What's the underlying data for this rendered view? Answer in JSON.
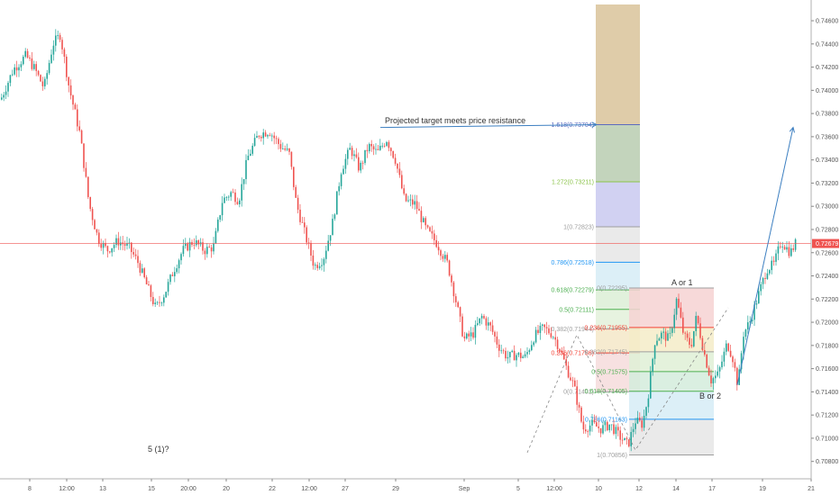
{
  "chart_data": {
    "type": "candlestick",
    "instrument_last_price": "0.72679",
    "colors": {
      "up": "#26a69a",
      "down": "#ef5350",
      "wick": "#555555",
      "projection": "#3d7fc1",
      "last_price_line": "#ef5350"
    },
    "y_axis": {
      "ticks": [
        "0.74600",
        "0.74400",
        "0.74200",
        "0.74000",
        "0.73800",
        "0.73600",
        "0.73400",
        "0.73200",
        "0.73000",
        "0.72800",
        "0.72600",
        "0.72400",
        "0.72200",
        "0.72000",
        "0.71800",
        "0.71600",
        "0.71400",
        "0.71200",
        "0.71000",
        "0.70800"
      ],
      "range": [
        0.7072,
        0.7474
      ]
    },
    "x_axis": {
      "ticks": [
        "8",
        "12:00",
        "13",
        "15",
        "20:00",
        "20",
        "22",
        "12:00",
        "27",
        "29",
        "Sep",
        "5",
        "12:00",
        "10",
        "12",
        "14",
        "17",
        "19",
        "21"
      ]
    },
    "price_path": [
      [
        0,
        0.7392
      ],
      [
        14,
        0.7418
      ],
      [
        28,
        0.743
      ],
      [
        38,
        0.7418
      ],
      [
        48,
        0.7402
      ],
      [
        58,
        0.744
      ],
      [
        66,
        0.7448
      ],
      [
        76,
        0.7402
      ],
      [
        88,
        0.7362
      ],
      [
        98,
        0.7302
      ],
      [
        108,
        0.7272
      ],
      [
        118,
        0.7262
      ],
      [
        130,
        0.727
      ],
      [
        142,
        0.7265
      ],
      [
        152,
        0.7252
      ],
      [
        162,
        0.7232
      ],
      [
        172,
        0.7212
      ],
      [
        182,
        0.7225
      ],
      [
        192,
        0.7245
      ],
      [
        202,
        0.7262
      ],
      [
        214,
        0.727
      ],
      [
        226,
        0.7262
      ],
      [
        236,
        0.7265
      ],
      [
        246,
        0.7305
      ],
      [
        256,
        0.7312
      ],
      [
        264,
        0.7305
      ],
      [
        274,
        0.7342
      ],
      [
        286,
        0.7362
      ],
      [
        298,
        0.7365
      ],
      [
        310,
        0.7352
      ],
      [
        320,
        0.7346
      ],
      [
        328,
        0.7302
      ],
      [
        338,
        0.7275
      ],
      [
        348,
        0.7248
      ],
      [
        358,
        0.7255
      ],
      [
        368,
        0.7285
      ],
      [
        378,
        0.7332
      ],
      [
        388,
        0.735
      ],
      [
        398,
        0.7332
      ],
      [
        408,
        0.7352
      ],
      [
        418,
        0.7346
      ],
      [
        428,
        0.7358
      ],
      [
        438,
        0.734
      ],
      [
        448,
        0.7305
      ],
      [
        460,
        0.7302
      ],
      [
        472,
        0.728
      ],
      [
        484,
        0.7268
      ],
      [
        496,
        0.725
      ],
      [
        506,
        0.7215
      ],
      [
        514,
        0.7185
      ],
      [
        524,
        0.719
      ],
      [
        534,
        0.7205
      ],
      [
        544,
        0.7195
      ],
      [
        552,
        0.718
      ],
      [
        562,
        0.717
      ],
      [
        572,
        0.7172
      ],
      [
        582,
        0.717
      ],
      [
        592,
        0.7188
      ],
      [
        602,
        0.7195
      ],
      [
        612,
        0.719
      ],
      [
        620,
        0.7178
      ],
      [
        628,
        0.716
      ],
      [
        636,
        0.7145
      ],
      [
        646,
        0.7108
      ],
      [
        656,
        0.7112
      ],
      [
        666,
        0.7108
      ],
      [
        676,
        0.7112
      ],
      [
        686,
        0.7102
      ],
      [
        696,
        0.7094
      ],
      [
        704,
        0.7115
      ],
      [
        712,
        0.7112
      ],
      [
        718,
        0.7135
      ],
      [
        726,
        0.7185
      ],
      [
        734,
        0.719
      ],
      [
        742,
        0.7185
      ],
      [
        750,
        0.722
      ],
      [
        758,
        0.7188
      ],
      [
        766,
        0.718
      ],
      [
        772,
        0.7205
      ],
      [
        780,
        0.7175
      ],
      [
        788,
        0.715
      ],
      [
        796,
        0.7155
      ],
      [
        806,
        0.7182
      ],
      [
        812,
        0.717
      ],
      [
        818,
        0.7145
      ],
      [
        824,
        0.719
      ],
      [
        832,
        0.7202
      ],
      [
        840,
        0.7222
      ],
      [
        850,
        0.7246
      ],
      [
        858,
        0.725
      ],
      [
        866,
        0.727
      ],
      [
        876,
        0.726
      ],
      [
        882,
        0.7268
      ]
    ],
    "fib_retracement_large": {
      "levels": [
        {
          "ratio": "1.618",
          "label": "1.618(0.73704)",
          "value": 0.73704,
          "color": "#5b6bc0",
          "fill": "#d9c39a"
        },
        {
          "ratio": "1.272",
          "label": "1.272(0.73211)",
          "value": 0.73211,
          "color": "#8bc34a",
          "fill": "#b9cdb0"
        },
        {
          "ratio": "1",
          "label": "1(0.72823)",
          "value": 0.72823,
          "color": "#9e9e9e",
          "fill": "#c9c9f0"
        },
        {
          "ratio": "0.786",
          "label": "0.786(0.72518)",
          "value": 0.72518,
          "color": "#2196f3",
          "fill": "#e6e6e6"
        },
        {
          "ratio": "0.618",
          "label": "0.618(0.72279)",
          "value": 0.72279,
          "color": "#4caf50",
          "fill": "#d6ecf6"
        },
        {
          "ratio": "0.5",
          "label": "0.5(0.72111)",
          "value": 0.72111,
          "color": "#4caf50",
          "fill": "#dcefd6"
        },
        {
          "ratio": "0.382",
          "label": "0.382(0.71944)",
          "value": 0.71944,
          "color": "#9e9e9e",
          "fill": "#e3f1da"
        },
        {
          "ratio": "0.236",
          "label": "0.236(0.71736)",
          "value": 0.71736,
          "color": "#f44336",
          "fill": "#f4e8c8"
        },
        {
          "ratio": "0",
          "label": "0(0.71401)",
          "value": 0.71401,
          "color": "#9e9e9e",
          "fill": "#f6dcdc"
        }
      ],
      "extension_top": 0.7474
    },
    "fib_retracement_small": {
      "levels": [
        {
          "ratio": "0",
          "label": "0(0.72295)",
          "value": 0.72295,
          "color": "#9e9e9e",
          "fill": "#f6d2d2"
        },
        {
          "ratio": "0.236",
          "label": "0.236(0.71955)",
          "value": 0.71955,
          "color": "#f44336",
          "fill": "#f4ecc8"
        },
        {
          "ratio": "0.382",
          "label": "0.382(0.71745)",
          "value": 0.71745,
          "color": "#9e9e9e",
          "fill": "#dff0d6"
        },
        {
          "ratio": "0.5",
          "label": "0.5(0.71575)",
          "value": 0.71575,
          "color": "#4caf50",
          "fill": "#d4ecdc"
        },
        {
          "ratio": "0.618",
          "label": "0.618(0.71405)",
          "value": 0.71405,
          "color": "#4caf50",
          "fill": "#d6ecf6"
        },
        {
          "ratio": "0.786",
          "label": "0.786(0.71163)",
          "value": 0.71163,
          "color": "#2196f3",
          "fill": "#e6e6e6"
        },
        {
          "ratio": "1",
          "label": "1(0.70856)",
          "value": 0.70856,
          "color": "#9e9e9e",
          "fill": "none"
        }
      ]
    },
    "annotations": {
      "projection_text": "Projected target meets price resistance",
      "wave_a": "A or 1",
      "wave_b": "B or 2",
      "wave_5": "5 (1)?"
    }
  }
}
